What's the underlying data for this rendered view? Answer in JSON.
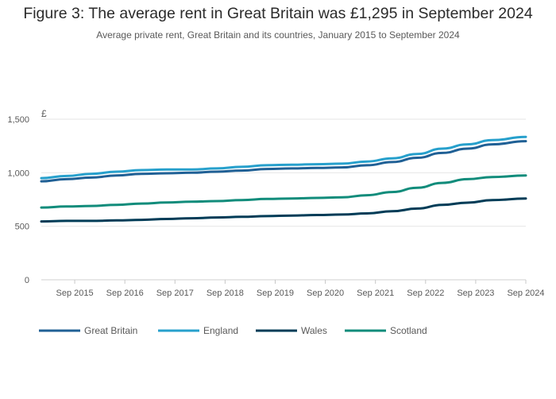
{
  "header": {
    "title": "Figure 3: The average rent in Great Britain was £1,295 in September 2024",
    "subtitle": "Average private rent, Great Britain and its countries, January 2015 to September 2024"
  },
  "chart_data": {
    "type": "line",
    "title": "Figure 3: The average rent in Great Britain was £1,295 in September 2024",
    "subtitle": "Average private rent, Great Britain and its countries, January 2015 to September 2024",
    "y_unit": "£",
    "xlabel": "",
    "ylabel": "",
    "ylim": [
      0,
      1500
    ],
    "y_ticks": [
      0,
      500,
      1000,
      1500
    ],
    "y_tick_labels": [
      "0",
      "500",
      "1,000",
      "1,500"
    ],
    "x_tick_labels": [
      "Sep 2015",
      "Sep 2016",
      "Sep 2017",
      "Sep 2018",
      "Sep 2019",
      "Sep 2020",
      "Sep 2021",
      "Sep 2022",
      "Sep 2023",
      "Sep 2024"
    ],
    "x_range": [
      "Jan 2015",
      "Sep 2024"
    ],
    "grid": "horizontal",
    "legend_position": "bottom-left",
    "x": [
      "Jan 2015",
      "Jul 2015",
      "Jan 2016",
      "Jul 2016",
      "Jan 2017",
      "Jul 2017",
      "Jan 2018",
      "Jul 2018",
      "Jan 2019",
      "Jul 2019",
      "Jan 2020",
      "Jul 2020",
      "Jan 2021",
      "Jul 2021",
      "Jan 2022",
      "Jul 2022",
      "Jan 2023",
      "Jul 2023",
      "Jan 2024",
      "Sep 2024"
    ],
    "series": [
      {
        "name": "Great Britain",
        "color": "#206095",
        "values": [
          920,
          940,
          955,
          975,
          990,
          995,
          1000,
          1010,
          1020,
          1035,
          1040,
          1045,
          1050,
          1070,
          1100,
          1140,
          1185,
          1225,
          1265,
          1295
        ]
      },
      {
        "name": "England",
        "color": "#27a0cc",
        "values": [
          950,
          970,
          990,
          1010,
          1025,
          1030,
          1030,
          1040,
          1055,
          1070,
          1075,
          1080,
          1085,
          1105,
          1135,
          1175,
          1225,
          1265,
          1305,
          1335
        ]
      },
      {
        "name": "Wales",
        "color": "#003c57",
        "values": [
          545,
          550,
          550,
          555,
          560,
          568,
          575,
          582,
          588,
          595,
          600,
          605,
          610,
          620,
          640,
          665,
          700,
          720,
          745,
          760
        ]
      },
      {
        "name": "Scotland",
        "color": "#118c7b",
        "values": [
          675,
          685,
          690,
          700,
          712,
          722,
          730,
          735,
          745,
          755,
          760,
          765,
          770,
          790,
          820,
          860,
          905,
          940,
          960,
          975
        ]
      }
    ]
  }
}
